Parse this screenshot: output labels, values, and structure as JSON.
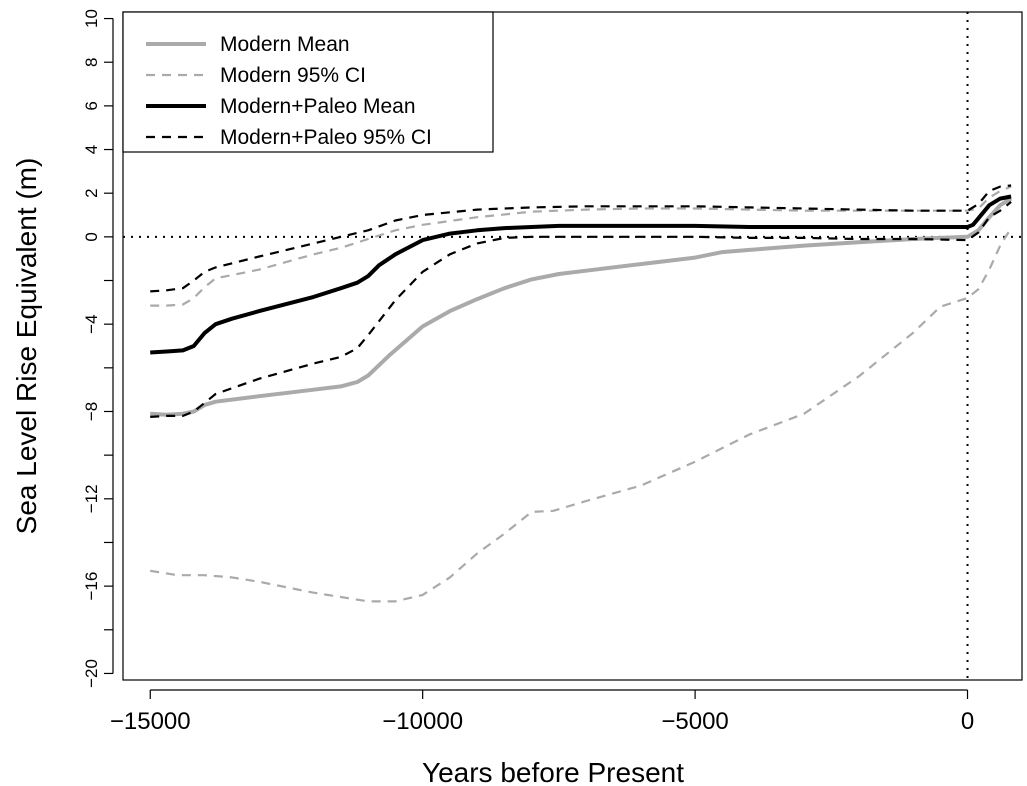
{
  "chart_data": {
    "type": "line",
    "xlabel": "Years before Present",
    "ylabel": "Sea Level Rise Equivalent (m)",
    "xlim": [
      -15500,
      1000
    ],
    "ylim": [
      -20.3,
      10.3
    ],
    "x_ticks": [
      -15000,
      -10000,
      -5000,
      0
    ],
    "x_tick_labels": [
      "−15000",
      "−10000",
      "−5000",
      "0"
    ],
    "y_ticks": [
      -20,
      -18,
      -16,
      -14,
      -12,
      -10,
      -8,
      -6,
      -4,
      -2,
      0,
      2,
      4,
      6,
      8,
      10
    ],
    "y_tick_labels": [
      "−20",
      "",
      "−16",
      "",
      "−12",
      "",
      "−8",
      "",
      "−4",
      "",
      "0",
      "2",
      "4",
      "6",
      "8",
      "10"
    ],
    "reference_lines": {
      "horizontal_y": 0,
      "vertical_x": 0,
      "style": "dotted"
    },
    "grid": false,
    "legend_position": "top-left",
    "series": [
      {
        "name": "Modern Mean",
        "color": "#aaaaaa",
        "style": "solid",
        "x": [
          -15000,
          -14700,
          -14400,
          -14200,
          -14000,
          -13800,
          -13000,
          -12000,
          -11500,
          -11200,
          -11000,
          -10600,
          -10000,
          -9500,
          -9000,
          -8500,
          -8000,
          -7500,
          -7000,
          -6000,
          -5000,
          -4500,
          -4000,
          -3000,
          -2000,
          -1000,
          0,
          200,
          400,
          600,
          800
        ],
        "y": [
          -8.1,
          -8.15,
          -8.1,
          -8.0,
          -7.7,
          -7.55,
          -7.3,
          -7.0,
          -6.85,
          -6.65,
          -6.35,
          -5.4,
          -4.1,
          -3.4,
          -2.85,
          -2.35,
          -1.95,
          -1.7,
          -1.55,
          -1.25,
          -0.95,
          -0.7,
          -0.6,
          -0.4,
          -0.25,
          -0.1,
          0.0,
          0.3,
          0.9,
          1.45,
          1.75
        ]
      },
      {
        "name": "Modern 95% CI",
        "color": "#aaaaaa",
        "style": "dashed",
        "x": [
          -15000,
          -14700,
          -14400,
          -14200,
          -14000,
          -13800,
          -13000,
          -12000,
          -11500,
          -11000,
          -10500,
          -10000,
          -9000,
          -8000,
          -7000,
          -6000,
          -5000,
          -4000,
          -3000,
          -2000,
          -1000,
          0,
          200,
          400,
          600,
          800
        ],
        "y": [
          -3.15,
          -3.15,
          -3.1,
          -2.8,
          -2.3,
          -1.9,
          -1.5,
          -0.8,
          -0.5,
          -0.1,
          0.3,
          0.55,
          0.9,
          1.15,
          1.25,
          1.3,
          1.3,
          1.25,
          1.2,
          1.2,
          1.2,
          1.2,
          1.3,
          1.8,
          2.1,
          2.3
        ]
      },
      {
        "name": "Modern 95% CI lower",
        "color": "#aaaaaa",
        "style": "dashed",
        "x": [
          -15000,
          -14500,
          -14000,
          -13500,
          -13000,
          -12000,
          -11000,
          -10500,
          -10000,
          -9500,
          -9000,
          -8500,
          -8000,
          -7600,
          -7000,
          -6000,
          -5000,
          -4000,
          -3000,
          -2000,
          -1000,
          -500,
          0,
          200,
          400,
          600,
          800
        ],
        "y": [
          -15.3,
          -15.5,
          -15.5,
          -15.6,
          -15.8,
          -16.3,
          -16.7,
          -16.7,
          -16.4,
          -15.6,
          -14.5,
          -13.6,
          -12.6,
          -12.55,
          -12.1,
          -11.4,
          -10.3,
          -9.05,
          -8.1,
          -6.4,
          -4.4,
          -3.2,
          -2.8,
          -2.4,
          -1.5,
          -0.4,
          0.4
        ]
      },
      {
        "name": "Modern+Paleo Mean",
        "color": "#000000",
        "style": "solid",
        "x": [
          -15000,
          -14700,
          -14400,
          -14200,
          -14000,
          -13800,
          -13500,
          -13000,
          -12000,
          -11500,
          -11200,
          -11000,
          -10800,
          -10500,
          -10000,
          -9500,
          -9000,
          -8500,
          -8000,
          -7500,
          -7000,
          -6000,
          -5000,
          -4000,
          -3000,
          -2000,
          -1000,
          0,
          100,
          200,
          400,
          600,
          800
        ],
        "y": [
          -5.3,
          -5.25,
          -5.2,
          -5.0,
          -4.4,
          -4.0,
          -3.75,
          -3.4,
          -2.75,
          -2.35,
          -2.1,
          -1.8,
          -1.3,
          -0.8,
          -0.15,
          0.15,
          0.3,
          0.4,
          0.45,
          0.5,
          0.5,
          0.5,
          0.5,
          0.45,
          0.45,
          0.45,
          0.45,
          0.45,
          0.55,
          0.85,
          1.45,
          1.75,
          1.85
        ]
      },
      {
        "name": "Modern+Paleo 95% CI",
        "color": "#000000",
        "style": "dashed",
        "x": [
          -15000,
          -14700,
          -14400,
          -14200,
          -14000,
          -13800,
          -13000,
          -12000,
          -11500,
          -11000,
          -10500,
          -10000,
          -9000,
          -8000,
          -7000,
          -6000,
          -5000,
          -4000,
          -3000,
          -2000,
          -1000,
          0,
          200,
          400,
          600,
          800
        ],
        "y": [
          -2.5,
          -2.45,
          -2.35,
          -2.0,
          -1.6,
          -1.4,
          -0.9,
          -0.3,
          0.0,
          0.3,
          0.75,
          1.0,
          1.25,
          1.35,
          1.4,
          1.4,
          1.4,
          1.35,
          1.3,
          1.25,
          1.2,
          1.2,
          1.5,
          2.1,
          2.3,
          2.35
        ]
      },
      {
        "name": "Modern+Paleo 95% CI lower",
        "color": "#000000",
        "style": "dashed",
        "x": [
          -15000,
          -14700,
          -14400,
          -14200,
          -14000,
          -13800,
          -13000,
          -12000,
          -11500,
          -11200,
          -11000,
          -10500,
          -10000,
          -9500,
          -9000,
          -8500,
          -8000,
          -7000,
          -6000,
          -5000,
          -4000,
          -3000,
          -2000,
          -1000,
          0,
          200,
          400,
          600,
          800
        ],
        "y": [
          -8.25,
          -8.2,
          -8.2,
          -8.0,
          -7.6,
          -7.2,
          -6.5,
          -5.8,
          -5.5,
          -5.1,
          -4.5,
          -2.9,
          -1.6,
          -0.8,
          -0.3,
          -0.05,
          0.0,
          0.0,
          0.0,
          0.0,
          -0.05,
          -0.05,
          -0.1,
          -0.1,
          -0.15,
          0.2,
          0.9,
          1.2,
          1.6
        ]
      }
    ],
    "legend": [
      {
        "label": "Modern Mean",
        "color": "#aaaaaa",
        "style": "solid"
      },
      {
        "label": "Modern 95% CI",
        "color": "#aaaaaa",
        "style": "dashed"
      },
      {
        "label": "Modern+Paleo Mean",
        "color": "#000000",
        "style": "solid"
      },
      {
        "label": "Modern+Paleo 95% CI",
        "color": "#000000",
        "style": "dashed"
      }
    ]
  }
}
